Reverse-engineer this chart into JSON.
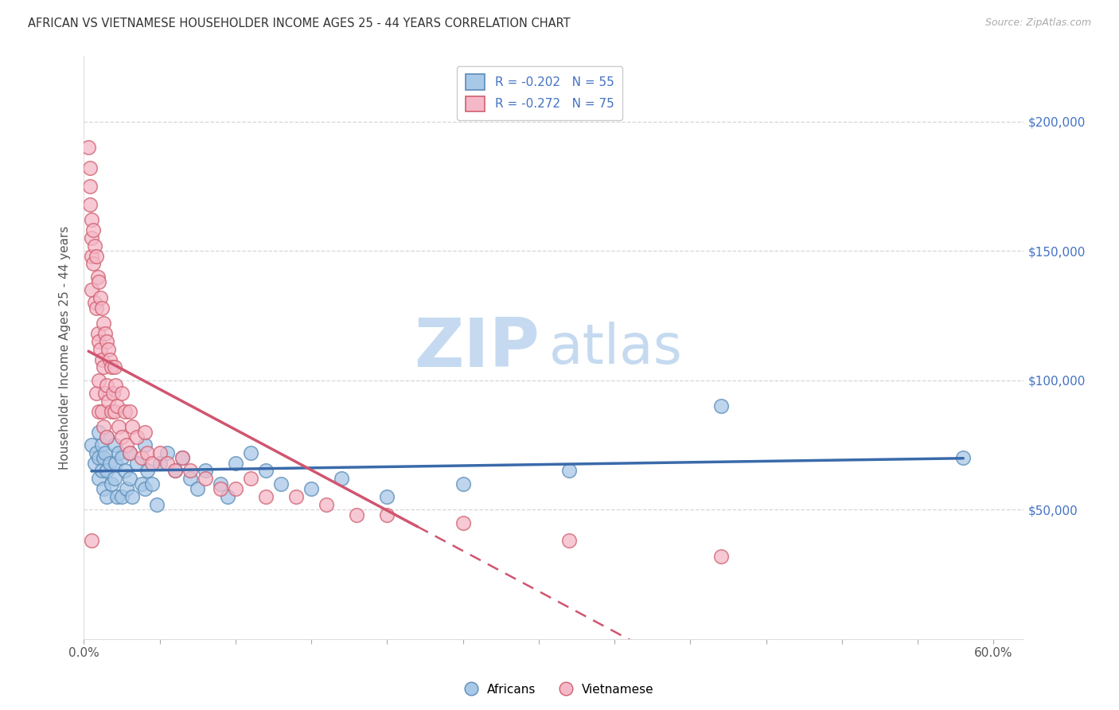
{
  "title": "AFRICAN VS VIETNAMESE HOUSEHOLDER INCOME AGES 25 - 44 YEARS CORRELATION CHART",
  "source": "Source: ZipAtlas.com",
  "ylabel": "Householder Income Ages 25 - 44 years",
  "ytick_labels": [
    "$50,000",
    "$100,000",
    "$150,000",
    "$200,000"
  ],
  "ytick_values": [
    50000,
    100000,
    150000,
    200000
  ],
  "african_face_color": "#a8c8e8",
  "african_edge_color": "#5b8db8",
  "vietnamese_face_color": "#f5b8c8",
  "vietnamese_edge_color": "#d06070",
  "african_line_color": "#3a6aaa",
  "vietnamese_line_color": "#d05570",
  "watermark_color": "#c8dff0",
  "xlim": [
    0.0,
    0.62
  ],
  "ylim": [
    0,
    225000
  ],
  "africans_x": [
    0.005,
    0.007,
    0.008,
    0.01,
    0.01,
    0.01,
    0.012,
    0.012,
    0.013,
    0.013,
    0.014,
    0.015,
    0.015,
    0.015,
    0.017,
    0.018,
    0.02,
    0.02,
    0.021,
    0.022,
    0.023,
    0.025,
    0.025,
    0.027,
    0.028,
    0.03,
    0.03,
    0.032,
    0.035,
    0.038,
    0.04,
    0.04,
    0.042,
    0.045,
    0.048,
    0.05,
    0.055,
    0.06,
    0.065,
    0.07,
    0.075,
    0.08,
    0.09,
    0.095,
    0.1,
    0.11,
    0.12,
    0.13,
    0.15,
    0.17,
    0.2,
    0.25,
    0.32,
    0.42,
    0.58
  ],
  "africans_y": [
    75000,
    68000,
    72000,
    80000,
    70000,
    62000,
    75000,
    65000,
    70000,
    58000,
    72000,
    78000,
    65000,
    55000,
    68000,
    60000,
    75000,
    62000,
    68000,
    55000,
    72000,
    70000,
    55000,
    65000,
    58000,
    72000,
    62000,
    55000,
    68000,
    60000,
    75000,
    58000,
    65000,
    60000,
    52000,
    68000,
    72000,
    65000,
    70000,
    62000,
    58000,
    65000,
    60000,
    55000,
    68000,
    72000,
    65000,
    60000,
    58000,
    62000,
    55000,
    60000,
    65000,
    90000,
    70000
  ],
  "vietnamese_x": [
    0.003,
    0.004,
    0.004,
    0.004,
    0.005,
    0.005,
    0.005,
    0.005,
    0.005,
    0.006,
    0.006,
    0.007,
    0.007,
    0.008,
    0.008,
    0.008,
    0.009,
    0.009,
    0.01,
    0.01,
    0.01,
    0.01,
    0.011,
    0.011,
    0.012,
    0.012,
    0.012,
    0.013,
    0.013,
    0.013,
    0.014,
    0.014,
    0.015,
    0.015,
    0.015,
    0.016,
    0.016,
    0.017,
    0.018,
    0.018,
    0.019,
    0.02,
    0.02,
    0.021,
    0.022,
    0.023,
    0.025,
    0.025,
    0.027,
    0.028,
    0.03,
    0.03,
    0.032,
    0.035,
    0.038,
    0.04,
    0.042,
    0.045,
    0.05,
    0.055,
    0.06,
    0.065,
    0.07,
    0.08,
    0.09,
    0.1,
    0.11,
    0.12,
    0.14,
    0.16,
    0.18,
    0.2,
    0.25,
    0.32,
    0.42
  ],
  "vietnamese_y": [
    190000,
    182000,
    175000,
    168000,
    162000,
    155000,
    148000,
    135000,
    38000,
    158000,
    145000,
    152000,
    130000,
    148000,
    128000,
    95000,
    140000,
    118000,
    138000,
    115000,
    100000,
    88000,
    132000,
    112000,
    128000,
    108000,
    88000,
    122000,
    105000,
    82000,
    118000,
    95000,
    115000,
    98000,
    78000,
    112000,
    92000,
    108000,
    105000,
    88000,
    95000,
    105000,
    88000,
    98000,
    90000,
    82000,
    95000,
    78000,
    88000,
    75000,
    88000,
    72000,
    82000,
    78000,
    70000,
    80000,
    72000,
    68000,
    72000,
    68000,
    65000,
    70000,
    65000,
    62000,
    58000,
    58000,
    62000,
    55000,
    55000,
    52000,
    48000,
    48000,
    45000,
    38000,
    32000
  ]
}
